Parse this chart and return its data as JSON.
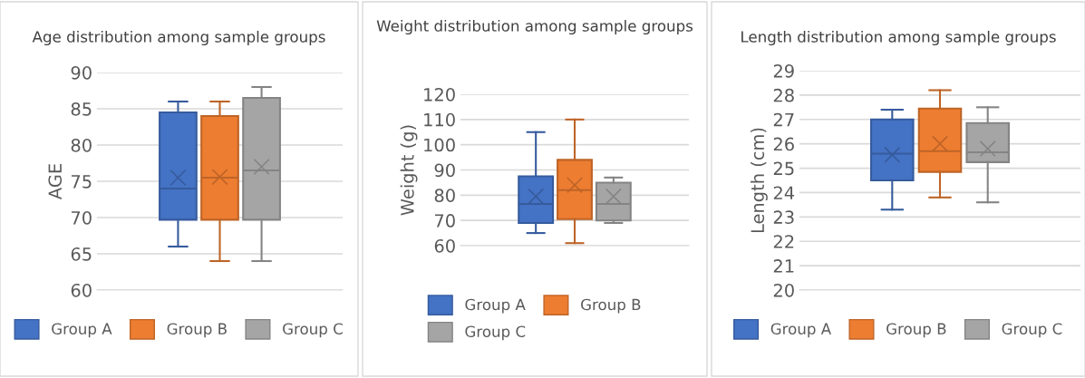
{
  "chart_data": [
    {
      "type": "box",
      "title": "Age distribution among sample groups",
      "ylabel": "AGE",
      "categories": [
        null
      ],
      "ylim": [
        60,
        90
      ],
      "yticks": [
        60,
        65,
        70,
        75,
        80,
        85,
        90
      ],
      "grid": "y",
      "legend": "bottom",
      "tick_labels": "y",
      "marker": "cross",
      "series": [
        {
          "name": "Group A",
          "color": "#4472c4",
          "boxes": [
            {
              "low": 66,
              "q1": 69.7,
              "median": 74,
              "q3": 84.5,
              "high": 86,
              "mean": 75.5
            }
          ]
        },
        {
          "name": "Group B",
          "color": "#ed7d31",
          "boxes": [
            {
              "low": 64,
              "q1": 69.7,
              "median": 75.5,
              "q3": 84,
              "high": 86,
              "mean": 75.6
            }
          ]
        },
        {
          "name": "Group C",
          "color": "#a5a5a5",
          "boxes": [
            {
              "low": 64,
              "q1": 69.7,
              "median": 76.5,
              "q3": 86.5,
              "high": 88,
              "mean": 77
            }
          ]
        }
      ]
    },
    {
      "type": "box",
      "title": "Weight distribution among sample groups",
      "ylabel": "Weight (g)",
      "categories": [
        null
      ],
      "ylim": [
        60,
        120
      ],
      "yticks": [
        60,
        70,
        80,
        90,
        100,
        110,
        120
      ],
      "grid": "y",
      "legend": "bottom",
      "tick_labels": "y",
      "marker": "cross",
      "series": [
        {
          "name": "Group A",
          "color": "#4472c4",
          "boxes": [
            {
              "low": 65,
              "q1": 69,
              "median": 76.5,
              "q3": 87.5,
              "high": 105,
              "mean": 79.5
            }
          ]
        },
        {
          "name": "Group B",
          "color": "#ed7d31",
          "boxes": [
            {
              "low": 61,
              "q1": 70.5,
              "median": 82,
              "q3": 94,
              "high": 110,
              "mean": 84
            }
          ]
        },
        {
          "name": "Group C",
          "color": "#a5a5a5",
          "boxes": [
            {
              "low": 69,
              "q1": 70,
              "median": 76.5,
              "q3": 85,
              "high": 87,
              "mean": 79.5
            }
          ]
        }
      ]
    },
    {
      "type": "box",
      "title": "Length distribution among sample groups",
      "ylabel": "Length (cm)",
      "categories": [
        null
      ],
      "ylim": [
        20,
        29
      ],
      "yticks": [
        20,
        21,
        22,
        23,
        24,
        25,
        26,
        27,
        28,
        29
      ],
      "grid": "y",
      "legend": "bottom",
      "tick_labels": "y",
      "marker": "cross",
      "series": [
        {
          "name": "Group A",
          "color": "#4472c4",
          "boxes": [
            {
              "low": 23.3,
              "q1": 24.5,
              "median": 25.6,
              "q3": 27,
              "high": 27.4,
              "mean": 25.55
            }
          ]
        },
        {
          "name": "Group B",
          "color": "#ed7d31",
          "boxes": [
            {
              "low": 23.8,
              "q1": 24.85,
              "median": 25.7,
              "q3": 27.45,
              "high": 28.2,
              "mean": 26
            }
          ]
        },
        {
          "name": "Group C",
          "color": "#a5a5a5",
          "boxes": [
            {
              "low": 23.6,
              "q1": 25.25,
              "median": 25.65,
              "q3": 26.85,
              "high": 27.5,
              "mean": 25.8
            }
          ]
        }
      ]
    }
  ]
}
